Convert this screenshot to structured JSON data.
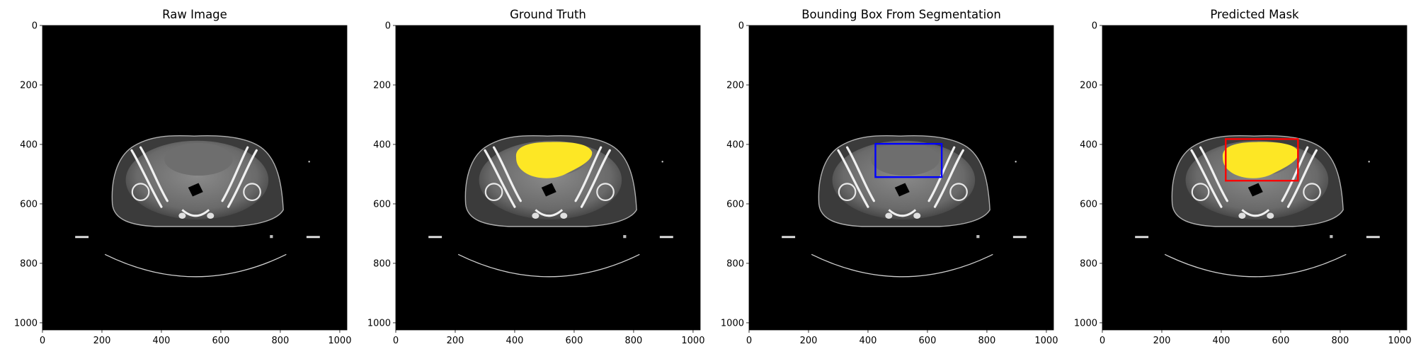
{
  "figure": {
    "axis_ticks": [
      0,
      200,
      400,
      600,
      800,
      1000
    ],
    "image_extent": [
      0,
      1024
    ],
    "colors": {
      "background": "#000000",
      "mask": "#FDE725",
      "box_blue": "#0000FF",
      "box_red": "#FF0000"
    },
    "panels": [
      {
        "title": "Raw Image",
        "show_mask": false,
        "box": null
      },
      {
        "title": "Ground Truth",
        "show_mask": true,
        "box": null
      },
      {
        "title": "Bounding Box From Segmentation",
        "show_mask": false,
        "box": {
          "x0": 425,
          "y0": 398,
          "x1": 648,
          "y1": 510,
          "color": "#0000FF"
        }
      },
      {
        "title": "Predicted Mask",
        "show_mask": true,
        "box": {
          "x0": 415,
          "y0": 382,
          "x1": 658,
          "y1": 522,
          "color": "#FF0000"
        }
      }
    ]
  }
}
